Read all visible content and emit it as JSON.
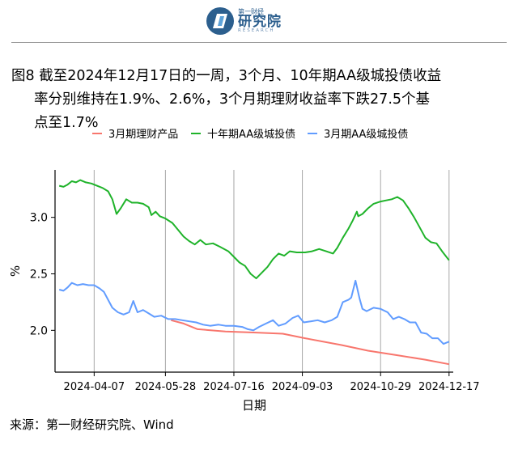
{
  "header": {
    "logo_top": "第一财经",
    "logo_main": "研究院",
    "logo_sub": "RESEARCH"
  },
  "figure": {
    "title_line1": "图8  截至2024年12月17日的一周，3个月、10年期AA级城投债收益",
    "title_line2": "率分别维持在1.9%、2.6%，3个月期理财收益率下跌27.5个基",
    "title_line3": "点至1.7%",
    "source": "来源：第一财经研究院、Wind"
  },
  "colors": {
    "series_wealth": "#f8766d",
    "series_10y": "#1fb32a",
    "series_3m": "#619cff",
    "axis": "#000000",
    "grid_v": "#a8a8a8"
  },
  "chart_data": {
    "type": "line",
    "xlabel": "日期",
    "ylabel": "%",
    "ylim": [
      1.63,
      3.42
    ],
    "yticks": [
      2.0,
      2.5,
      3.0
    ],
    "ytick_labels": [
      "2.0",
      "2.5",
      "3.0"
    ],
    "xlim": [
      "2024-03-10",
      "2024-12-20"
    ],
    "xticks": [
      "2024-04-07",
      "2024-05-28",
      "2024-07-16",
      "2024-09-03",
      "2024-10-29",
      "2024-12-17"
    ],
    "grid": "vertical",
    "legend_position": "top",
    "series": [
      {
        "name": "3月期理财产品",
        "color": "#f8766d",
        "points": [
          [
            "2024-06-01",
            2.09
          ],
          [
            "2024-06-10",
            2.06
          ],
          [
            "2024-06-20",
            2.01
          ],
          [
            "2024-07-10",
            1.99
          ],
          [
            "2024-08-01",
            1.98
          ],
          [
            "2024-08-20",
            1.97
          ],
          [
            "2024-09-05",
            1.93
          ],
          [
            "2024-10-01",
            1.87
          ],
          [
            "2024-10-20",
            1.82
          ],
          [
            "2024-11-10",
            1.78
          ],
          [
            "2024-11-30",
            1.74
          ],
          [
            "2024-12-17",
            1.7
          ]
        ]
      },
      {
        "name": "十年期AA级城投债",
        "color": "#1fb32a",
        "points": [
          [
            "2024-03-13",
            3.28
          ],
          [
            "2024-03-16",
            3.27
          ],
          [
            "2024-03-19",
            3.29
          ],
          [
            "2024-03-22",
            3.32
          ],
          [
            "2024-03-25",
            3.31
          ],
          [
            "2024-03-28",
            3.33
          ],
          [
            "2024-04-01",
            3.31
          ],
          [
            "2024-04-05",
            3.3
          ],
          [
            "2024-04-09",
            3.28
          ],
          [
            "2024-04-13",
            3.26
          ],
          [
            "2024-04-17",
            3.23
          ],
          [
            "2024-04-20",
            3.16
          ],
          [
            "2024-04-23",
            3.03
          ],
          [
            "2024-04-26",
            3.08
          ],
          [
            "2024-04-30",
            3.16
          ],
          [
            "2024-05-04",
            3.13
          ],
          [
            "2024-05-08",
            3.13
          ],
          [
            "2024-05-12",
            3.12
          ],
          [
            "2024-05-16",
            3.09
          ],
          [
            "2024-05-18",
            3.02
          ],
          [
            "2024-05-21",
            3.05
          ],
          [
            "2024-05-24",
            3.01
          ],
          [
            "2024-05-28",
            2.99
          ],
          [
            "2024-06-02",
            2.95
          ],
          [
            "2024-06-06",
            2.89
          ],
          [
            "2024-06-10",
            2.83
          ],
          [
            "2024-06-14",
            2.79
          ],
          [
            "2024-06-18",
            2.76
          ],
          [
            "2024-06-22",
            2.8
          ],
          [
            "2024-06-26",
            2.76
          ],
          [
            "2024-07-01",
            2.77
          ],
          [
            "2024-07-06",
            2.74
          ],
          [
            "2024-07-12",
            2.7
          ],
          [
            "2024-07-16",
            2.65
          ],
          [
            "2024-07-20",
            2.6
          ],
          [
            "2024-07-24",
            2.57
          ],
          [
            "2024-07-28",
            2.5
          ],
          [
            "2024-08-01",
            2.46
          ],
          [
            "2024-08-05",
            2.51
          ],
          [
            "2024-08-09",
            2.56
          ],
          [
            "2024-08-13",
            2.63
          ],
          [
            "2024-08-17",
            2.68
          ],
          [
            "2024-08-21",
            2.66
          ],
          [
            "2024-08-25",
            2.7
          ],
          [
            "2024-08-30",
            2.69
          ],
          [
            "2024-09-05",
            2.69
          ],
          [
            "2024-09-10",
            2.7
          ],
          [
            "2024-09-15",
            2.72
          ],
          [
            "2024-09-20",
            2.7
          ],
          [
            "2024-09-25",
            2.68
          ],
          [
            "2024-09-28",
            2.73
          ],
          [
            "2024-10-02",
            2.82
          ],
          [
            "2024-10-06",
            2.9
          ],
          [
            "2024-10-09",
            2.97
          ],
          [
            "2024-10-12",
            3.05
          ],
          [
            "2024-10-13",
            3.01
          ],
          [
            "2024-10-16",
            3.03
          ],
          [
            "2024-10-20",
            3.08
          ],
          [
            "2024-10-24",
            3.12
          ],
          [
            "2024-10-29",
            3.14
          ],
          [
            "2024-11-02",
            3.15
          ],
          [
            "2024-11-06",
            3.16
          ],
          [
            "2024-11-10",
            3.18
          ],
          [
            "2024-11-14",
            3.15
          ],
          [
            "2024-11-18",
            3.08
          ],
          [
            "2024-11-22",
            3.0
          ],
          [
            "2024-11-26",
            2.91
          ],
          [
            "2024-11-30",
            2.82
          ],
          [
            "2024-12-04",
            2.78
          ],
          [
            "2024-12-08",
            2.77
          ],
          [
            "2024-12-12",
            2.7
          ],
          [
            "2024-12-17",
            2.62
          ]
        ]
      },
      {
        "name": "3月期AA级城投债",
        "color": "#619cff",
        "points": [
          [
            "2024-03-13",
            2.36
          ],
          [
            "2024-03-16",
            2.35
          ],
          [
            "2024-03-19",
            2.38
          ],
          [
            "2024-03-22",
            2.42
          ],
          [
            "2024-03-26",
            2.4
          ],
          [
            "2024-03-30",
            2.41
          ],
          [
            "2024-04-03",
            2.4
          ],
          [
            "2024-04-07",
            2.4
          ],
          [
            "2024-04-11",
            2.37
          ],
          [
            "2024-04-14",
            2.34
          ],
          [
            "2024-04-17",
            2.27
          ],
          [
            "2024-04-20",
            2.2
          ],
          [
            "2024-04-24",
            2.16
          ],
          [
            "2024-04-28",
            2.14
          ],
          [
            "2024-05-02",
            2.16
          ],
          [
            "2024-05-05",
            2.26
          ],
          [
            "2024-05-08",
            2.16
          ],
          [
            "2024-05-12",
            2.18
          ],
          [
            "2024-05-16",
            2.15
          ],
          [
            "2024-05-20",
            2.12
          ],
          [
            "2024-05-25",
            2.13
          ],
          [
            "2024-05-30",
            2.1
          ],
          [
            "2024-06-04",
            2.1
          ],
          [
            "2024-06-09",
            2.09
          ],
          [
            "2024-06-14",
            2.08
          ],
          [
            "2024-06-19",
            2.07
          ],
          [
            "2024-06-24",
            2.05
          ],
          [
            "2024-06-29",
            2.04
          ],
          [
            "2024-07-05",
            2.05
          ],
          [
            "2024-07-10",
            2.04
          ],
          [
            "2024-07-16",
            2.04
          ],
          [
            "2024-07-22",
            2.03
          ],
          [
            "2024-07-26",
            2.01
          ],
          [
            "2024-07-30",
            2.0
          ],
          [
            "2024-08-03",
            2.03
          ],
          [
            "2024-08-08",
            2.06
          ],
          [
            "2024-08-13",
            2.09
          ],
          [
            "2024-08-17",
            2.04
          ],
          [
            "2024-08-22",
            2.06
          ],
          [
            "2024-08-27",
            2.11
          ],
          [
            "2024-08-31",
            2.13
          ],
          [
            "2024-09-04",
            2.07
          ],
          [
            "2024-09-09",
            2.08
          ],
          [
            "2024-09-14",
            2.09
          ],
          [
            "2024-09-19",
            2.07
          ],
          [
            "2024-09-24",
            2.09
          ],
          [
            "2024-09-28",
            2.12
          ],
          [
            "2024-10-02",
            2.25
          ],
          [
            "2024-10-06",
            2.27
          ],
          [
            "2024-10-08",
            2.29
          ],
          [
            "2024-10-11",
            2.44
          ],
          [
            "2024-10-14",
            2.28
          ],
          [
            "2024-10-16",
            2.19
          ],
          [
            "2024-10-19",
            2.17
          ],
          [
            "2024-10-24",
            2.2
          ],
          [
            "2024-10-29",
            2.19
          ],
          [
            "2024-11-03",
            2.16
          ],
          [
            "2024-11-07",
            2.1
          ],
          [
            "2024-11-11",
            2.12
          ],
          [
            "2024-11-15",
            2.1
          ],
          [
            "2024-11-19",
            2.07
          ],
          [
            "2024-11-23",
            2.07
          ],
          [
            "2024-11-27",
            1.98
          ],
          [
            "2024-12-01",
            1.97
          ],
          [
            "2024-12-05",
            1.93
          ],
          [
            "2024-12-09",
            1.93
          ],
          [
            "2024-12-13",
            1.88
          ],
          [
            "2024-12-17",
            1.9
          ]
        ]
      }
    ]
  }
}
